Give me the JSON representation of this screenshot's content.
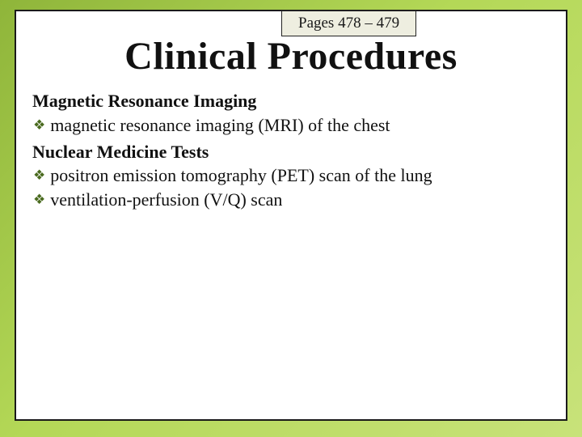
{
  "colors": {
    "background_gradient_start": "#8fb53a",
    "background_gradient_mid": "#b4d857",
    "background_gradient_end": "#c8e27a",
    "frame_bg": "#ffffff",
    "frame_border": "#1a1a1a",
    "tab_bg": "#eeeee0",
    "tab_border": "#222222",
    "text_color": "#111111",
    "bullet_color": "#4a6b1f"
  },
  "typography": {
    "font_family": "Georgia, Times New Roman, serif",
    "title_fontsize_pt": 36,
    "header_fontsize_pt": 17,
    "body_fontsize_pt": 17,
    "tab_fontsize_pt": 14
  },
  "pages_label": "Pages 478 – 479",
  "title": "Clinical Procedures",
  "sections": [
    {
      "header": "Magnetic Resonance Imaging",
      "items": [
        "magnetic resonance imaging (MRI) of the chest"
      ]
    },
    {
      "header": "Nuclear Medicine Tests",
      "items": [
        "positron emission tomography (PET) scan of the lung",
        "ventilation-perfusion (V/Q) scan"
      ]
    }
  ]
}
